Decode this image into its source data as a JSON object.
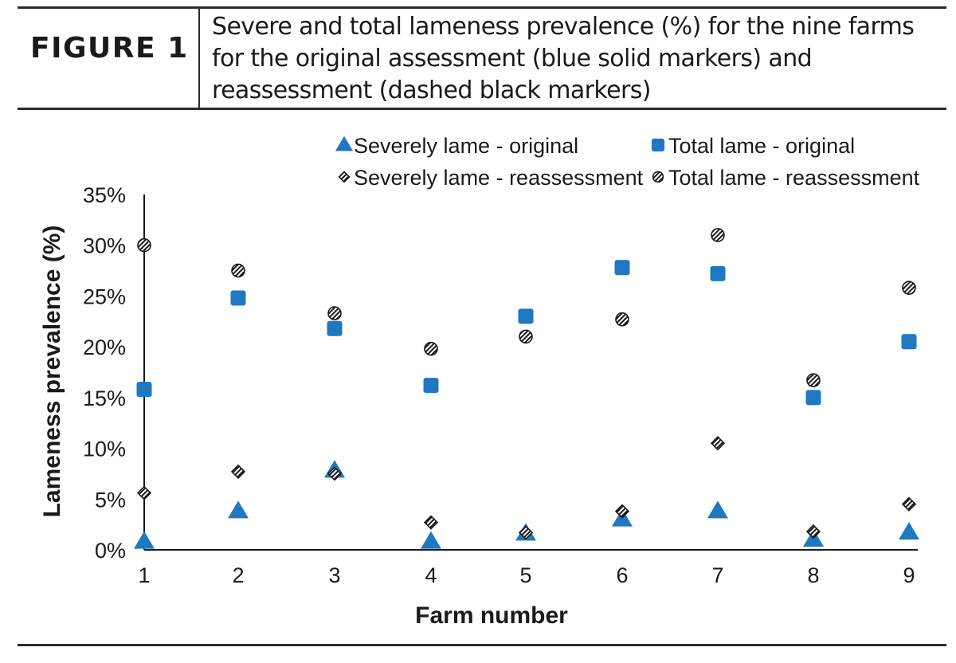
{
  "figure": {
    "label": "FIGURE 1",
    "caption": "Severe and total lameness prevalence (%) for the nine farms for the original assessment (blue solid markers) and reassessment (dashed black markers)"
  },
  "chart_data": {
    "type": "scatter",
    "xlabel": "Farm number",
    "ylabel": "Lameness prevalence (%)",
    "x": [
      1,
      2,
      3,
      4,
      5,
      6,
      7,
      8,
      9
    ],
    "xticks": [
      "1",
      "2",
      "3",
      "4",
      "5",
      "6",
      "7",
      "8",
      "9"
    ],
    "ylim": [
      0,
      35
    ],
    "yticks": [
      "0%",
      "5%",
      "10%",
      "15%",
      "20%",
      "25%",
      "30%",
      "35%"
    ],
    "grid": false,
    "legend_position": "top-right",
    "series": [
      {
        "name": "Severely lame - original",
        "marker": "triangle",
        "color": "#1f78c1",
        "values": [
          0.8,
          3.8,
          7.8,
          0.8,
          1.6,
          3.0,
          3.8,
          1.0,
          1.7
        ]
      },
      {
        "name": "Total lame - original",
        "marker": "square",
        "color": "#1f78c1",
        "values": [
          15.8,
          24.8,
          21.8,
          16.2,
          23.0,
          27.8,
          27.2,
          15.0,
          20.5
        ]
      },
      {
        "name": "Severely lame - reassessment",
        "marker": "diamond-hatched",
        "color": "#1a1a1a",
        "values": [
          5.6,
          7.7,
          7.5,
          2.7,
          1.7,
          3.8,
          10.5,
          1.8,
          4.5
        ]
      },
      {
        "name": "Total lame - reassessment",
        "marker": "circle-hatched",
        "color": "#1a1a1a",
        "values": [
          30.0,
          27.5,
          23.3,
          19.8,
          21.0,
          22.7,
          31.0,
          16.7,
          25.8
        ]
      }
    ]
  }
}
